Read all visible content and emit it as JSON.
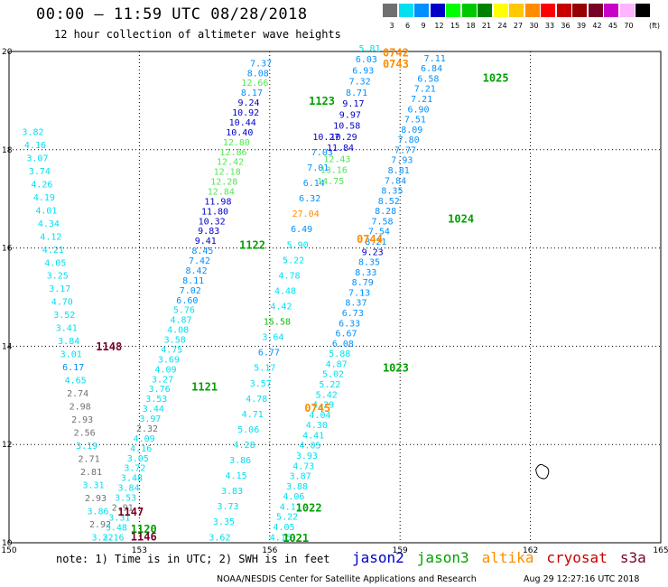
{
  "header": {
    "title": "00:00 – 11:59 UTC 08/28/2018",
    "subtitle": "12 hour collection of altimeter wave heights"
  },
  "legend": {
    "unit": "(ft)",
    "items": [
      {
        "label": "3",
        "color": "#707070"
      },
      {
        "label": "6",
        "color": "#00e0f0"
      },
      {
        "label": "9",
        "color": "#0090ff"
      },
      {
        "label": "12",
        "color": "#0000c8"
      },
      {
        "label": "15",
        "color": "#00ff00"
      },
      {
        "label": "18",
        "color": "#00c800"
      },
      {
        "label": "21",
        "color": "#008200"
      },
      {
        "label": "24",
        "color": "#ffff00"
      },
      {
        "label": "27",
        "color": "#ffc800"
      },
      {
        "label": "30",
        "color": "#ff8c00"
      },
      {
        "label": "33",
        "color": "#ff0000"
      },
      {
        "label": "36",
        "color": "#c80000"
      },
      {
        "label": "39",
        "color": "#960000"
      },
      {
        "label": "42",
        "color": "#780028"
      },
      {
        "label": "45",
        "color": "#c800c8"
      },
      {
        "label": "70",
        "color": "#ffb4ff"
      },
      {
        "label": "",
        "color": "#000000"
      }
    ]
  },
  "chart_data": {
    "type": "scatter",
    "xlim": [
      150,
      165
    ],
    "ylim": [
      10,
      20
    ],
    "x_ticks": [
      "150",
      "153",
      "156",
      "159",
      "162",
      "165"
    ],
    "y_ticks": [
      "10",
      "12",
      "14",
      "16",
      "18",
      "20"
    ],
    "grid": true,
    "series": [
      {
        "name": "jason2",
        "color": "#0000c8"
      },
      {
        "name": "jason3",
        "color": "#00a000"
      },
      {
        "name": "altika",
        "color": "#ff8c00"
      },
      {
        "name": "cryosat",
        "color": "#c80000"
      },
      {
        "name": "s3a",
        "color": "#780028"
      }
    ],
    "tracks": [
      {
        "id": "track-a",
        "start": [
          150.55,
          18.3
        ],
        "end": [
          152.15,
          10.05
        ],
        "step": 0.1585,
        "values": [
          "3.82",
          "4.16",
          "3.07",
          "3.74",
          "4.26",
          "4.19",
          "4.01",
          "4.34",
          "4.12",
          "4.21",
          "4.05",
          "3.25",
          "3.17",
          "4.70",
          "3.52",
          "3.41",
          "3.84",
          "3.01",
          "6.17",
          "4.65",
          "2.74",
          "2.98",
          "2.93",
          "2.56",
          "3.19",
          "2.71",
          "2.81",
          "3.31",
          "2.93",
          "3.86",
          "2.92",
          "3.22"
        ]
      },
      {
        "id": "track-b",
        "start": [
          152.4,
          10.05
        ],
        "end": [
          155.8,
          19.7
        ],
        "step": 0.1585,
        "values": [
          "3.16",
          "3.48",
          "3.31",
          "2.91",
          "3.53",
          "3.84",
          "3.48",
          "3.72",
          "3.05",
          "4.16",
          "4.09",
          "2.32",
          "3.97",
          "3.44",
          "3.53",
          "3.76",
          "3.27",
          "4.09",
          "3.69",
          "4.75",
          "3.58",
          "4.08",
          "4.87",
          "5.76",
          "6.60",
          "7.02",
          "8.11",
          "8.42",
          "7.42",
          "8.45",
          "9.41",
          "9.83",
          "10.32",
          "11.80",
          "11.98",
          "12.84",
          "12.28",
          "12.18",
          "12.42",
          "12.86",
          "12.80",
          "10.40",
          "10.44",
          "10.92",
          "9.24",
          "8.17",
          "12.66",
          "8.08",
          "7.37"
        ]
      },
      {
        "id": "track-c",
        "start": [
          154.85,
          10.05
        ],
        "end": [
          157.3,
          18.2
        ],
        "step": 0.1585,
        "values": [
          "3.62",
          "3.35",
          "3.73",
          "3.83",
          "4.15",
          "3.86",
          "4.28",
          "5.06",
          "4.71",
          "4.78",
          "3.57",
          "5.17",
          "6.77",
          "3.64",
          "15.58",
          "4.42",
          "4.48",
          "4.78",
          "5.22",
          "5.90",
          "6.49",
          "27.04",
          "6.32",
          "6.14",
          "7.01",
          "7.03",
          "10.27"
        ]
      },
      {
        "id": "track-d",
        "start": [
          157.4,
          17.3
        ],
        "end": [
          158.3,
          20.0
        ],
        "step": 0.2,
        "values": [
          "14.75",
          "13.16",
          "12.43",
          "11.84",
          "10.29",
          "10.58",
          "9.97",
          "9.17",
          "8.71",
          "7.32",
          "6.93",
          "6.03",
          "5.81"
        ]
      },
      {
        "id": "track-e",
        "start": [
          156.25,
          10.05
        ],
        "end": [
          159.8,
          19.8
        ],
        "step": 0.1585,
        "values": [
          "4.15",
          "4.05",
          "5.22",
          "4.11",
          "4.06",
          "3.88",
          "3.87",
          "4.73",
          "3.93",
          "4.05",
          "4.41",
          "4.30",
          "4.04",
          "4.29",
          "5.42",
          "5.22",
          "5.02",
          "4.87",
          "5.88",
          "6.08",
          "6.67",
          "6.33",
          "6.73",
          "8.37",
          "7.13",
          "8.79",
          "8.33",
          "8.35",
          "9.23",
          "8.21",
          "7.54",
          "7.58",
          "8.28",
          "8.52",
          "8.35",
          "7.84",
          "8.81",
          "7.93",
          "7.77",
          "7.80",
          "8.09",
          "7.51",
          "6.90",
          "7.21",
          "7.21",
          "6.58",
          "6.84",
          "7.11"
        ]
      }
    ],
    "pass_labels": [
      {
        "text": "0742",
        "x": 158.6,
        "y": 19.9,
        "series": "altika"
      },
      {
        "text": "0743",
        "x": 158.6,
        "y": 19.67,
        "series": "altika"
      },
      {
        "text": "1025",
        "x": 160.9,
        "y": 19.38,
        "series": "jason3"
      },
      {
        "text": "1123",
        "x": 156.9,
        "y": 18.92,
        "series": "jason3"
      },
      {
        "text": "1024",
        "x": 160.1,
        "y": 16.52,
        "series": "jason3"
      },
      {
        "text": "0744",
        "x": 158.0,
        "y": 16.1,
        "series": "altika"
      },
      {
        "text": "1122",
        "x": 155.3,
        "y": 15.98,
        "series": "jason3"
      },
      {
        "text": "1148",
        "x": 152.0,
        "y": 13.92,
        "series": "s3a"
      },
      {
        "text": "1023",
        "x": 158.6,
        "y": 13.48,
        "series": "jason3"
      },
      {
        "text": "1121",
        "x": 154.2,
        "y": 13.1,
        "series": "jason3"
      },
      {
        "text": "0745",
        "x": 156.8,
        "y": 12.67,
        "series": "altika"
      },
      {
        "text": "1022",
        "x": 156.6,
        "y": 10.63,
        "series": "jason3"
      },
      {
        "text": "1147",
        "x": 152.5,
        "y": 10.55,
        "series": "s3a"
      },
      {
        "text": "1120",
        "x": 152.8,
        "y": 10.2,
        "series": "jason3"
      },
      {
        "text": "1146",
        "x": 152.8,
        "y": 10.05,
        "series": "s3a"
      },
      {
        "text": "1021",
        "x": 156.3,
        "y": 10.02,
        "series": "jason3"
      }
    ],
    "land_outline": {
      "x": 162.25,
      "y": 11.42
    }
  },
  "footer": {
    "note": "note: 1) Time is in UTC; 2) SWH is in feet",
    "credit": "NOAA/NESDIS Center for Satellite Applications and Research",
    "timestamp": "Aug 29 12:27:16 UTC 2018"
  }
}
